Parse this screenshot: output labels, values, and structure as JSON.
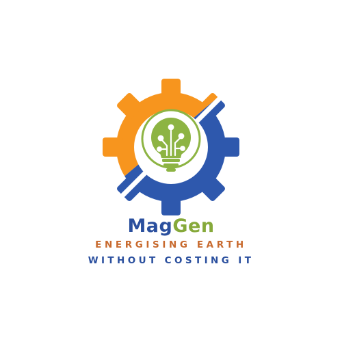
{
  "logo": {
    "brand_part1": "Mag",
    "brand_part2": "Gen",
    "tagline_1": "ENERGISING EARTH",
    "tagline_2": "WITHOUT COSTING IT"
  },
  "colors": {
    "orange": "#f7951e",
    "blue": "#2e58ad",
    "navy_text": "#2a4f9e",
    "green": "#8db443",
    "tagline_orange": "#c86a2e"
  },
  "icons": [
    "gear-icon",
    "light-bulb-icon",
    "circuit-icon"
  ]
}
